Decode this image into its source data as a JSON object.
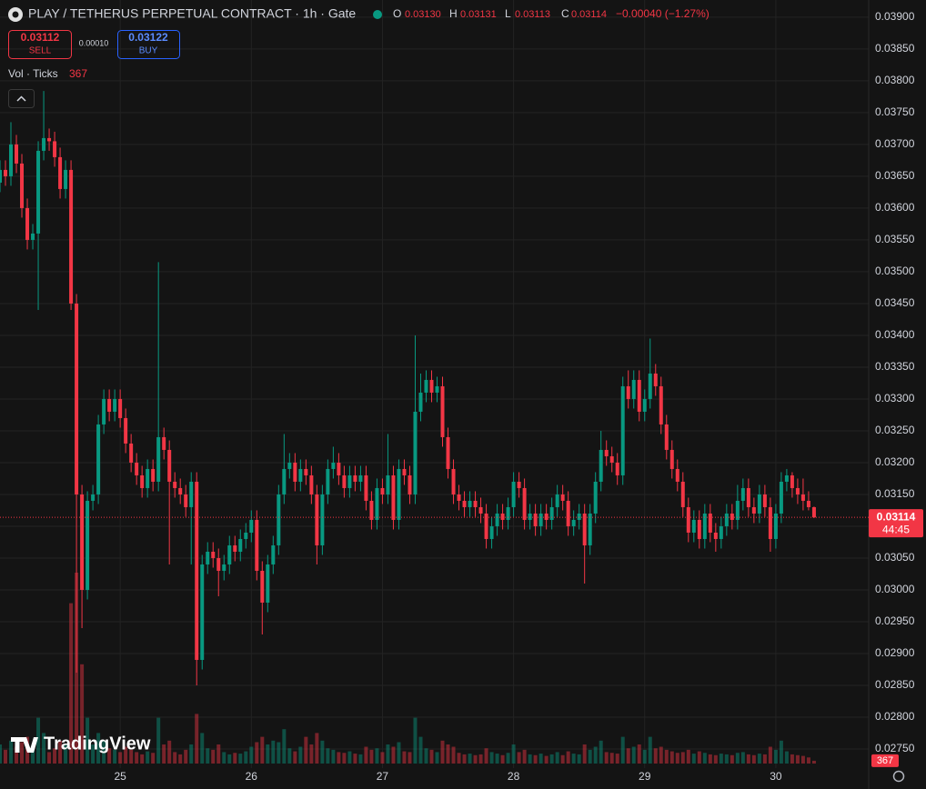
{
  "chart_data": {
    "type": "candlestick",
    "title": "PLAY / TETHERUS PERPETUAL CONTRACT · 1h · Gate",
    "legend_keys": [
      "O",
      "H",
      "L",
      "C"
    ],
    "open_label": "0.03130",
    "change": "−0.00040 (−1.27%)",
    "sell_price": "0.03112",
    "sell_label": "SELL",
    "spread": "0.00010",
    "buy_price": "0.03122",
    "buy_label": "BUY",
    "volume_title": "Vol · Ticks",
    "countdown": "44:45",
    "watermark": "TradingView",
    "up_color": "#089981",
    "down_color": "#f23645",
    "grid": true,
    "ylim": [
      0.0272,
      0.03927
    ],
    "vlim": [
      0,
      100000
    ],
    "xlim": [
      0,
      159
    ],
    "yticks": [
      {
        "value": 0.0275,
        "label": "0.02750"
      },
      {
        "value": 0.028,
        "label": "0.02800"
      },
      {
        "value": 0.0285,
        "label": "0.02850"
      },
      {
        "value": 0.029,
        "label": "0.02900"
      },
      {
        "value": 0.0295,
        "label": "0.02950"
      },
      {
        "value": 0.03,
        "label": "0.03000"
      },
      {
        "value": 0.0305,
        "label": "0.03050"
      },
      {
        "value": 0.031,
        "label": "0.03100"
      },
      {
        "value": 0.0315,
        "label": "0.03150"
      },
      {
        "value": 0.032,
        "label": "0.03200"
      },
      {
        "value": 0.0325,
        "label": "0.03250"
      },
      {
        "value": 0.033,
        "label": "0.03300"
      },
      {
        "value": 0.0335,
        "label": "0.03350"
      },
      {
        "value": 0.034,
        "label": "0.03400"
      },
      {
        "value": 0.0345,
        "label": "0.03450"
      },
      {
        "value": 0.035,
        "label": "0.03500"
      },
      {
        "value": 0.0355,
        "label": "0.03550"
      },
      {
        "value": 0.036,
        "label": "0.03600"
      },
      {
        "value": 0.0365,
        "label": "0.03650"
      },
      {
        "value": 0.037,
        "label": "0.03700"
      },
      {
        "value": 0.0375,
        "label": "0.03750"
      },
      {
        "value": 0.038,
        "label": "0.03800"
      },
      {
        "value": 0.0385,
        "label": "0.03850"
      },
      {
        "value": 0.039,
        "label": "0.03900"
      }
    ],
    "xticks": [
      {
        "value": 22,
        "label": "25"
      },
      {
        "value": 46,
        "label": "26"
      },
      {
        "value": 70,
        "label": "27"
      },
      {
        "value": 94,
        "label": "28"
      },
      {
        "value": 118,
        "label": "29"
      },
      {
        "value": 142,
        "label": "30"
      }
    ],
    "candles": [
      [
        0.0364,
        0.03675,
        0.03625,
        0.0366
      ],
      [
        0.0366,
        0.03675,
        0.03635,
        0.0365
      ],
      [
        0.0365,
        0.03735,
        0.03635,
        0.037
      ],
      [
        0.037,
        0.03715,
        0.03655,
        0.0367
      ],
      [
        0.0367,
        0.03685,
        0.03585,
        0.036
      ],
      [
        0.036,
        0.03615,
        0.03535,
        0.0355
      ],
      [
        0.0355,
        0.03575,
        0.03535,
        0.0356
      ],
      [
        0.0356,
        0.03705,
        0.0344,
        0.0369
      ],
      [
        0.0369,
        0.03784,
        0.03675,
        0.0371
      ],
      [
        0.0371,
        0.03725,
        0.0369,
        0.03705
      ],
      [
        0.03705,
        0.0372,
        0.03665,
        0.0368
      ],
      [
        0.0368,
        0.03695,
        0.03615,
        0.0363
      ],
      [
        0.0363,
        0.03675,
        0.03615,
        0.0366
      ],
      [
        0.0366,
        0.03675,
        0.0344,
        0.0345
      ],
      [
        0.0345,
        0.03465,
        0.0287,
        0.0315
      ],
      [
        0.0315,
        0.03165,
        0.0294,
        0.03
      ],
      [
        0.03,
        0.03155,
        0.02985,
        0.0314
      ],
      [
        0.0314,
        0.03165,
        0.03125,
        0.0315
      ],
      [
        0.0315,
        0.03275,
        0.03135,
        0.0326
      ],
      [
        0.0326,
        0.03315,
        0.03245,
        0.033
      ],
      [
        0.033,
        0.03315,
        0.03265,
        0.0328
      ],
      [
        0.0328,
        0.03315,
        0.03265,
        0.033
      ],
      [
        0.033,
        0.03315,
        0.03255,
        0.0327
      ],
      [
        0.0327,
        0.03285,
        0.03215,
        0.0323
      ],
      [
        0.0323,
        0.03245,
        0.03185,
        0.032
      ],
      [
        0.032,
        0.03215,
        0.03165,
        0.0318
      ],
      [
        0.0318,
        0.03195,
        0.03145,
        0.0316
      ],
      [
        0.0316,
        0.03205,
        0.03145,
        0.0319
      ],
      [
        0.0319,
        0.03205,
        0.03155,
        0.0317
      ],
      [
        0.0317,
        0.03515,
        0.03155,
        0.0324
      ],
      [
        0.0324,
        0.03255,
        0.03205,
        0.0322
      ],
      [
        0.0322,
        0.03235,
        0.0304,
        0.0317
      ],
      [
        0.0317,
        0.03185,
        0.03145,
        0.0316
      ],
      [
        0.0316,
        0.03175,
        0.03135,
        0.0315
      ],
      [
        0.0315,
        0.03165,
        0.03115,
        0.0313
      ],
      [
        0.0313,
        0.03185,
        0.0304,
        0.0317
      ],
      [
        0.0317,
        0.03185,
        0.0285,
        0.0289
      ],
      [
        0.0289,
        0.03055,
        0.02875,
        0.0304
      ],
      [
        0.0304,
        0.03075,
        0.03025,
        0.0306
      ],
      [
        0.0306,
        0.03075,
        0.03035,
        0.0305
      ],
      [
        0.0305,
        0.03065,
        0.0299,
        0.0303
      ],
      [
        0.0303,
        0.03055,
        0.03015,
        0.0304
      ],
      [
        0.0304,
        0.03085,
        0.03025,
        0.0307
      ],
      [
        0.0307,
        0.03085,
        0.03045,
        0.0306
      ],
      [
        0.0306,
        0.03095,
        0.03045,
        0.0308
      ],
      [
        0.0308,
        0.03105,
        0.03065,
        0.0309
      ],
      [
        0.0309,
        0.03125,
        0.03075,
        0.0311
      ],
      [
        0.0311,
        0.03125,
        0.03015,
        0.0303
      ],
      [
        0.0303,
        0.03045,
        0.0293,
        0.0298
      ],
      [
        0.0298,
        0.03055,
        0.02965,
        0.0304
      ],
      [
        0.0304,
        0.03085,
        0.03025,
        0.0307
      ],
      [
        0.0307,
        0.03165,
        0.03055,
        0.0315
      ],
      [
        0.0315,
        0.03245,
        0.03135,
        0.0319
      ],
      [
        0.0319,
        0.03215,
        0.03175,
        0.032
      ],
      [
        0.032,
        0.03215,
        0.03155,
        0.0317
      ],
      [
        0.0317,
        0.03205,
        0.03155,
        0.0319
      ],
      [
        0.0319,
        0.03205,
        0.03165,
        0.0318
      ],
      [
        0.0318,
        0.03195,
        0.03135,
        0.0315
      ],
      [
        0.0315,
        0.03165,
        0.0304,
        0.0307
      ],
      [
        0.0307,
        0.03165,
        0.03055,
        0.0315
      ],
      [
        0.0315,
        0.03205,
        0.03135,
        0.0319
      ],
      [
        0.0319,
        0.03225,
        0.03175,
        0.032
      ],
      [
        0.032,
        0.03215,
        0.03165,
        0.0318
      ],
      [
        0.0318,
        0.03195,
        0.03145,
        0.0316
      ],
      [
        0.0316,
        0.03195,
        0.03145,
        0.0318
      ],
      [
        0.0318,
        0.03195,
        0.03155,
        0.0317
      ],
      [
        0.0317,
        0.03195,
        0.03155,
        0.0318
      ],
      [
        0.0318,
        0.03195,
        0.03125,
        0.0314
      ],
      [
        0.0314,
        0.03155,
        0.03095,
        0.0311
      ],
      [
        0.0311,
        0.03175,
        0.03095,
        0.0316
      ],
      [
        0.0316,
        0.03175,
        0.03135,
        0.0315
      ],
      [
        0.0315,
        0.03245,
        0.03135,
        0.0318
      ],
      [
        0.0318,
        0.03195,
        0.03095,
        0.0311
      ],
      [
        0.0311,
        0.03205,
        0.03095,
        0.0319
      ],
      [
        0.0319,
        0.03205,
        0.03165,
        0.0318
      ],
      [
        0.0318,
        0.03195,
        0.03135,
        0.0315
      ],
      [
        0.0315,
        0.034,
        0.03135,
        0.0328
      ],
      [
        0.0328,
        0.0334,
        0.03265,
        0.0331
      ],
      [
        0.0331,
        0.03345,
        0.03295,
        0.0333
      ],
      [
        0.0333,
        0.03345,
        0.03295,
        0.0331
      ],
      [
        0.0331,
        0.03335,
        0.03295,
        0.0332
      ],
      [
        0.0332,
        0.03335,
        0.03225,
        0.0324
      ],
      [
        0.0324,
        0.03255,
        0.03175,
        0.0319
      ],
      [
        0.0319,
        0.03205,
        0.03135,
        0.0315
      ],
      [
        0.0315,
        0.03165,
        0.03125,
        0.0314
      ],
      [
        0.0314,
        0.03155,
        0.03115,
        0.0313
      ],
      [
        0.0313,
        0.03155,
        0.03115,
        0.0314
      ],
      [
        0.0314,
        0.03155,
        0.03115,
        0.0313
      ],
      [
        0.0313,
        0.03145,
        0.03105,
        0.0312
      ],
      [
        0.0312,
        0.03135,
        0.03065,
        0.0308
      ],
      [
        0.0308,
        0.03115,
        0.03065,
        0.031
      ],
      [
        0.031,
        0.03135,
        0.03085,
        0.0312
      ],
      [
        0.0312,
        0.03135,
        0.03095,
        0.0311
      ],
      [
        0.0311,
        0.03145,
        0.03095,
        0.0313
      ],
      [
        0.0313,
        0.03185,
        0.03115,
        0.0317
      ],
      [
        0.0317,
        0.03185,
        0.03145,
        0.0316
      ],
      [
        0.0316,
        0.03175,
        0.03095,
        0.0311
      ],
      [
        0.0311,
        0.03135,
        0.03095,
        0.0312
      ],
      [
        0.0312,
        0.03135,
        0.03085,
        0.031
      ],
      [
        0.031,
        0.03135,
        0.03085,
        0.0312
      ],
      [
        0.0312,
        0.03135,
        0.03095,
        0.0311
      ],
      [
        0.0311,
        0.03145,
        0.03095,
        0.0313
      ],
      [
        0.0313,
        0.03165,
        0.03115,
        0.0315
      ],
      [
        0.0315,
        0.03165,
        0.03125,
        0.0314
      ],
      [
        0.0314,
        0.03155,
        0.03085,
        0.031
      ],
      [
        0.031,
        0.03125,
        0.03085,
        0.0311
      ],
      [
        0.0311,
        0.03135,
        0.03095,
        0.0312
      ],
      [
        0.0312,
        0.03135,
        0.0301,
        0.0307
      ],
      [
        0.0307,
        0.03135,
        0.03055,
        0.0312
      ],
      [
        0.0312,
        0.03185,
        0.03105,
        0.0317
      ],
      [
        0.0317,
        0.0325,
        0.03155,
        0.0322
      ],
      [
        0.0322,
        0.03235,
        0.03195,
        0.0321
      ],
      [
        0.0321,
        0.03225,
        0.03185,
        0.032
      ],
      [
        0.032,
        0.03215,
        0.03165,
        0.0318
      ],
      [
        0.0318,
        0.03335,
        0.03165,
        0.0332
      ],
      [
        0.0332,
        0.03345,
        0.03285,
        0.033
      ],
      [
        0.033,
        0.03345,
        0.03285,
        0.0333
      ],
      [
        0.0333,
        0.03345,
        0.03265,
        0.0328
      ],
      [
        0.0328,
        0.03315,
        0.03265,
        0.033
      ],
      [
        0.033,
        0.03395,
        0.03285,
        0.0334
      ],
      [
        0.0334,
        0.03355,
        0.03305,
        0.0332
      ],
      [
        0.0332,
        0.03335,
        0.03245,
        0.0326
      ],
      [
        0.0326,
        0.03275,
        0.03205,
        0.0322
      ],
      [
        0.0322,
        0.03235,
        0.03175,
        0.0319
      ],
      [
        0.0319,
        0.03205,
        0.03155,
        0.0317
      ],
      [
        0.0317,
        0.03185,
        0.03115,
        0.0313
      ],
      [
        0.0313,
        0.03145,
        0.03075,
        0.0309
      ],
      [
        0.0309,
        0.03125,
        0.03075,
        0.0311
      ],
      [
        0.0311,
        0.03125,
        0.03065,
        0.0308
      ],
      [
        0.0308,
        0.03135,
        0.03065,
        0.0312
      ],
      [
        0.0312,
        0.03135,
        0.03075,
        0.0309
      ],
      [
        0.0309,
        0.03105,
        0.0306,
        0.0308
      ],
      [
        0.0308,
        0.03115,
        0.03065,
        0.031
      ],
      [
        0.031,
        0.03135,
        0.03085,
        0.0312
      ],
      [
        0.0312,
        0.03135,
        0.03095,
        0.0311
      ],
      [
        0.0311,
        0.03165,
        0.03095,
        0.0314
      ],
      [
        0.0314,
        0.03175,
        0.03125,
        0.0316
      ],
      [
        0.0316,
        0.03175,
        0.03115,
        0.0313
      ],
      [
        0.0313,
        0.03145,
        0.03105,
        0.0312
      ],
      [
        0.0312,
        0.03165,
        0.03105,
        0.0315
      ],
      [
        0.0315,
        0.03165,
        0.03115,
        0.0313
      ],
      [
        0.0313,
        0.03145,
        0.0306,
        0.0308
      ],
      [
        0.0308,
        0.03135,
        0.03065,
        0.0312
      ],
      [
        0.0312,
        0.03185,
        0.03105,
        0.0317
      ],
      [
        0.0317,
        0.0319,
        0.03155,
        0.0318
      ],
      [
        0.0318,
        0.03185,
        0.03145,
        0.0316
      ],
      [
        0.0316,
        0.03175,
        0.03135,
        0.0315
      ],
      [
        0.0315,
        0.03175,
        0.03125,
        0.0314
      ],
      [
        0.0314,
        0.03155,
        0.03125,
        0.0313
      ],
      [
        0.0313,
        0.03131,
        0.03113,
        0.03114
      ]
    ],
    "volume": [
      2500,
      1800,
      3000,
      2200,
      2800,
      3500,
      2000,
      6000,
      4000,
      1500,
      2000,
      3000,
      2500,
      21000,
      25000,
      13000,
      6000,
      2500,
      4000,
      3000,
      2000,
      1800,
      1500,
      2200,
      1800,
      1500,
      1200,
      1600,
      1400,
      6000,
      2500,
      3000,
      1500,
      1200,
      1800,
      2500,
      6500,
      4000,
      2000,
      1800,
      2500,
      1500,
      1200,
      1400,
      1300,
      1600,
      2200,
      2800,
      3500,
      2500,
      3000,
      2800,
      4500,
      2000,
      1600,
      2200,
      3500,
      2500,
      4000,
      3000,
      2000,
      1800,
      1500,
      1400,
      1600,
      1300,
      1200,
      2200,
      1800,
      2000,
      1500,
      2500,
      2200,
      2800,
      1600,
      1500,
      6000,
      3500,
      2000,
      1800,
      1500,
      3000,
      2500,
      2200,
      1400,
      1200,
      1300,
      1100,
      1200,
      2000,
      1500,
      1300,
      1100,
      1400,
      2500,
      1500,
      1800,
      1200,
      1100,
      1300,
      1000,
      1200,
      1500,
      1100,
      1600,
      1300,
      1200,
      2500,
      1800,
      2200,
      3000,
      1500,
      1400,
      1300,
      3500,
      2000,
      2200,
      2500,
      1800,
      3500,
      2000,
      2200,
      1800,
      1600,
      1400,
      1500,
      1800,
      1300,
      1600,
      1400,
      1200,
      1100,
      1300,
      1200,
      1100,
      1400,
      1500,
      1200,
      1100,
      1300,
      1200,
      2200,
      1800,
      3000,
      1600,
      1200,
      1100,
      1000,
      800,
      367
    ]
  }
}
